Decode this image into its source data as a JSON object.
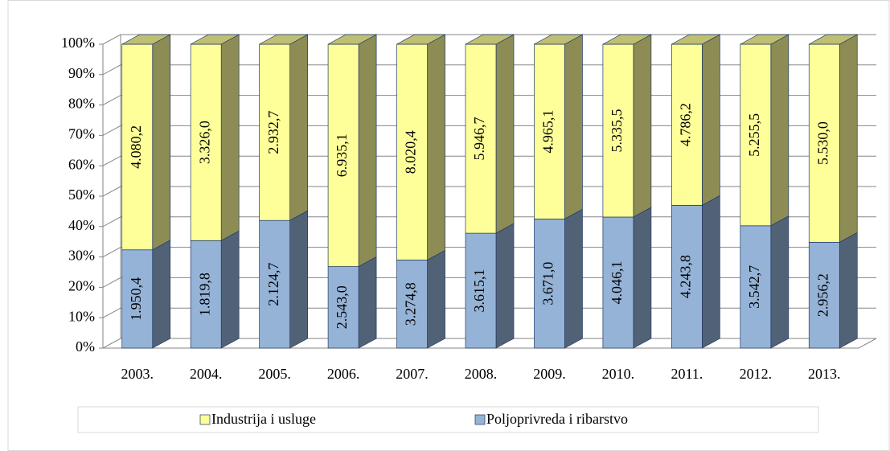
{
  "chart_data": {
    "type": "bar",
    "stacked": "percent",
    "categories": [
      "2003.",
      "2004.",
      "2005.",
      "2006.",
      "2007.",
      "2008.",
      "2009.",
      "2010.",
      "2011.",
      "2012.",
      "2013."
    ],
    "series": [
      {
        "name": "Poljoprivreda i ribarstvo",
        "color": "#95b3d7",
        "values": [
          1950.4,
          1819.8,
          2124.7,
          2543.0,
          3274.8,
          3615.1,
          3671.0,
          4046.1,
          4243.8,
          3542.7,
          2956.2
        ],
        "value_labels": [
          "1.950,4",
          "1.819,8",
          "2.124,7",
          "2.543,0",
          "3.274,8",
          "3.615,1",
          "3.671,0",
          "4.046,1",
          "4.243,8",
          "3.542,7",
          "2.956,2"
        ]
      },
      {
        "name": "Industrija i usluge",
        "color": "#ffff99",
        "values": [
          4080.2,
          3326.0,
          2932.7,
          6935.1,
          8020.4,
          5946.7,
          4965.1,
          5335.5,
          4786.2,
          5255.5,
          5530.0
        ],
        "value_labels": [
          "4.080,2",
          "3.326,0",
          "2.932,7",
          "6.935,1",
          "8.020,4",
          "5.946,7",
          "4.965,1",
          "5.335,5",
          "4.786,2",
          "5.255,5",
          "5.530,0"
        ]
      }
    ],
    "ylim": [
      0,
      100
    ],
    "yticks": [
      {
        "value": 0,
        "label": "0%"
      },
      {
        "value": 10,
        "label": "10%"
      },
      {
        "value": 20,
        "label": "20%"
      },
      {
        "value": 30,
        "label": "30%"
      },
      {
        "value": 40,
        "label": "40%"
      },
      {
        "value": 50,
        "label": "50%"
      },
      {
        "value": 60,
        "label": "60%"
      },
      {
        "value": 70,
        "label": "70%"
      },
      {
        "value": 80,
        "label": "80%"
      },
      {
        "value": 90,
        "label": "90%"
      },
      {
        "value": 100,
        "label": "100%"
      }
    ],
    "grid": true,
    "legend": "bottom"
  }
}
